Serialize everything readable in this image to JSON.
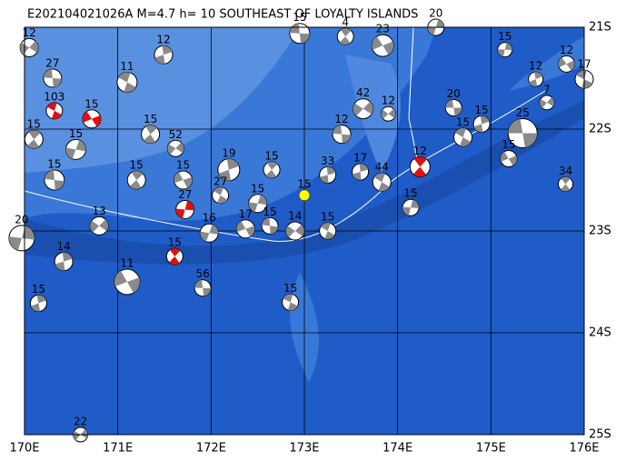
{
  "chart_data": {
    "type": "map",
    "title": "E202104021026A  M=4.7 h= 10 SOUTHEAST OF LOYALTY ISLANDS",
    "xlim": [
      170,
      176
    ],
    "ylim": [
      -25,
      -21
    ],
    "xticks": [
      {
        "value": 170,
        "label": "170E"
      },
      {
        "value": 171,
        "label": "171E"
      },
      {
        "value": 172,
        "label": "172E"
      },
      {
        "value": 173,
        "label": "173E"
      },
      {
        "value": 174,
        "label": "174E"
      },
      {
        "value": 175,
        "label": "175E"
      },
      {
        "value": 176,
        "label": "176E"
      }
    ],
    "yticks": [
      {
        "value": -21,
        "label": "21S"
      },
      {
        "value": -22,
        "label": "22S"
      },
      {
        "value": -23,
        "label": "23S"
      },
      {
        "value": -24,
        "label": "24S"
      },
      {
        "value": -25,
        "label": "25S"
      }
    ],
    "grid": true,
    "events": [
      {
        "lon": 175.34,
        "lat": -22.04,
        "depth": 25,
        "size": 16,
        "color": "gray"
      },
      {
        "lon": 175.8,
        "lat": -22.54,
        "depth": 34,
        "size": 8,
        "color": "gray"
      },
      {
        "lon": 175.15,
        "lat": -21.22,
        "depth": 15,
        "size": 8,
        "color": "gray"
      },
      {
        "lon": 175.81,
        "lat": -21.36,
        "depth": 12,
        "size": 9,
        "color": "gray"
      },
      {
        "lon": 176.0,
        "lat": -21.51,
        "depth": 17,
        "size": 10,
        "color": "gray"
      },
      {
        "lon": 175.48,
        "lat": -21.51,
        "depth": 12,
        "size": 8,
        "color": "gray"
      },
      {
        "lon": 175.6,
        "lat": -21.74,
        "depth": 7,
        "size": 8,
        "color": "gray"
      },
      {
        "lon": 174.6,
        "lat": -21.79,
        "depth": 20,
        "size": 9,
        "color": "gray"
      },
      {
        "lon": 174.24,
        "lat": -22.37,
        "depth": 12,
        "size": 11,
        "color": "red"
      },
      {
        "lon": 174.14,
        "lat": -22.77,
        "depth": 15,
        "size": 9,
        "color": "gray"
      },
      {
        "lon": 173.0,
        "lat": -22.65,
        "depth": 15,
        "size": 6,
        "color": "yellow"
      },
      {
        "lon": 172.85,
        "lat": -23.7,
        "depth": 15,
        "size": 9,
        "color": "gray"
      },
      {
        "lon": 170.15,
        "lat": -23.71,
        "depth": 15,
        "size": 9,
        "color": "gray"
      },
      {
        "lon": 170.6,
        "lat": -25.0,
        "depth": 22,
        "size": 8,
        "color": "gray"
      },
      {
        "lon": 171.91,
        "lat": -23.56,
        "depth": 56,
        "size": 9,
        "color": "gray"
      },
      {
        "lon": 171.61,
        "lat": -23.25,
        "depth": 15,
        "size": 9,
        "color": "red"
      },
      {
        "lon": 171.72,
        "lat": -22.79,
        "depth": 27,
        "size": 10,
        "color": "red"
      },
      {
        "lon": 170.72,
        "lat": -21.9,
        "depth": 15,
        "size": 10,
        "color": "red"
      },
      {
        "lon": 170.32,
        "lat": -21.82,
        "depth": 103,
        "size": 9,
        "color": "red"
      },
      {
        "lon": 172.19,
        "lat": -22.4,
        "depth": 19,
        "size": 12,
        "color": "gray"
      },
      {
        "lon": 171.62,
        "lat": -22.19,
        "depth": 52,
        "size": 9,
        "color": "gray"
      },
      {
        "lon": 172.95,
        "lat": -21.06,
        "depth": 15,
        "size": 11,
        "color": "gray"
      },
      {
        "lon": 173.44,
        "lat": -21.09,
        "depth": 4,
        "size": 9,
        "color": "gray"
      },
      {
        "lon": 174.41,
        "lat": -21.0,
        "depth": 20,
        "size": 9,
        "color": "gray"
      },
      {
        "lon": 173.84,
        "lat": -21.18,
        "depth": 23,
        "size": 12,
        "color": "gray"
      },
      {
        "lon": 171.1,
        "lat": -21.54,
        "depth": 11,
        "size": 11,
        "color": "gray"
      },
      {
        "lon": 171.49,
        "lat": -21.27,
        "depth": 12,
        "size": 10,
        "color": "gray"
      },
      {
        "lon": 170.05,
        "lat": -21.2,
        "depth": 12,
        "size": 10,
        "color": "gray"
      },
      {
        "lon": 170.3,
        "lat": -21.5,
        "depth": 27,
        "size": 10,
        "color": "gray"
      },
      {
        "lon": 170.1,
        "lat": -22.1,
        "depth": 15,
        "size": 10,
        "color": "gray"
      },
      {
        "lon": 169.97,
        "lat": -23.07,
        "depth": 20,
        "size": 14,
        "color": "gray"
      },
      {
        "lon": 175.19,
        "lat": -22.29,
        "depth": 15,
        "size": 9,
        "color": "gray"
      },
      {
        "lon": 174.7,
        "lat": -22.08,
        "depth": 15,
        "size": 10,
        "color": "gray"
      },
      {
        "lon": 174.9,
        "lat": -21.95,
        "depth": 15,
        "size": 9,
        "color": "gray"
      },
      {
        "lon": 173.63,
        "lat": -21.8,
        "depth": 42,
        "size": 11,
        "color": "gray"
      },
      {
        "lon": 173.4,
        "lat": -22.05,
        "depth": 12,
        "size": 10,
        "color": "gray"
      },
      {
        "lon": 172.65,
        "lat": -22.4,
        "depth": 15,
        "size": 9,
        "color": "gray"
      },
      {
        "lon": 172.5,
        "lat": -22.73,
        "depth": 15,
        "size": 10,
        "color": "gray"
      },
      {
        "lon": 171.1,
        "lat": -23.5,
        "depth": 11,
        "size": 14,
        "color": "gray"
      },
      {
        "lon": 173.25,
        "lat": -23.0,
        "depth": 15,
        "size": 9,
        "color": "gray"
      },
      {
        "lon": 170.42,
        "lat": -23.3,
        "depth": 14,
        "size": 10,
        "color": "gray"
      },
      {
        "lon": 170.8,
        "lat": -22.95,
        "depth": 13,
        "size": 10,
        "color": "gray"
      },
      {
        "lon": 170.32,
        "lat": -22.5,
        "depth": 15,
        "size": 11,
        "color": "gray"
      },
      {
        "lon": 171.2,
        "lat": -22.5,
        "depth": 15,
        "size": 10,
        "color": "gray"
      },
      {
        "lon": 171.98,
        "lat": -23.02,
        "depth": 16,
        "size": 10,
        "color": "gray"
      },
      {
        "lon": 172.37,
        "lat": -22.98,
        "depth": 17,
        "size": 10,
        "color": "gray"
      },
      {
        "lon": 173.83,
        "lat": -22.52,
        "depth": 44,
        "size": 10,
        "color": "gray"
      },
      {
        "lon": 173.6,
        "lat": -22.42,
        "depth": 17,
        "size": 9,
        "color": "gray"
      },
      {
        "lon": 172.9,
        "lat": -23.0,
        "depth": 14,
        "size": 10,
        "color": "gray"
      },
      {
        "lon": 172.63,
        "lat": -22.95,
        "depth": 15,
        "size": 9,
        "color": "gray"
      },
      {
        "lon": 171.35,
        "lat": -22.05,
        "depth": 15,
        "size": 10,
        "color": "gray"
      },
      {
        "lon": 170.55,
        "lat": -22.2,
        "depth": 15,
        "size": 11,
        "color": "gray"
      },
      {
        "lon": 171.7,
        "lat": -22.5,
        "depth": 15,
        "size": 10,
        "color": "gray"
      },
      {
        "lon": 172.1,
        "lat": -22.65,
        "depth": 27,
        "size": 9,
        "color": "gray"
      },
      {
        "lon": 173.25,
        "lat": -22.45,
        "depth": 33,
        "size": 9,
        "color": "gray"
      },
      {
        "lon": 173.9,
        "lat": -21.85,
        "depth": 12,
        "size": 8,
        "color": "gray"
      }
    ]
  }
}
